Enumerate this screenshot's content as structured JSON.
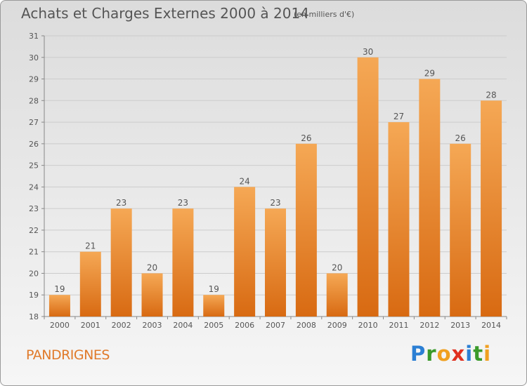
{
  "title": "Achats et Charges Externes 2000 à 2014",
  "subtitle": "(en milliers d'€)",
  "commune": "PANDRIGNES",
  "logo": {
    "text": "Proxiti",
    "letters": [
      {
        "char": "P",
        "color": "#2b7fd4"
      },
      {
        "char": "r",
        "color": "#3a9a2a"
      },
      {
        "char": "o",
        "color": "#f0a020"
      },
      {
        "char": "x",
        "color": "#e03020"
      },
      {
        "char": "i",
        "color": "#2b7fd4"
      },
      {
        "char": "t",
        "color": "#3a9a2a"
      },
      {
        "char": "i",
        "color": "#f0a020"
      }
    ]
  },
  "colors": {
    "bar_top": "#f5a855",
    "bar_bottom": "#d86a12",
    "accent": "#e07a2a",
    "grid": "#cccccc",
    "text": "#555555"
  },
  "chart_data": {
    "type": "bar",
    "categories": [
      "2000",
      "2001",
      "2002",
      "2003",
      "2004",
      "2005",
      "2006",
      "2007",
      "2008",
      "2009",
      "2010",
      "2011",
      "2012",
      "2013",
      "2014"
    ],
    "values": [
      19,
      21,
      23,
      20,
      23,
      19,
      24,
      23,
      26,
      20,
      30,
      27,
      29,
      26,
      28
    ],
    "ylim": [
      18,
      31
    ],
    "yticks": [
      18,
      19,
      20,
      21,
      22,
      23,
      24,
      25,
      26,
      27,
      28,
      29,
      30,
      31
    ],
    "grid": true,
    "show_value_labels": true
  }
}
